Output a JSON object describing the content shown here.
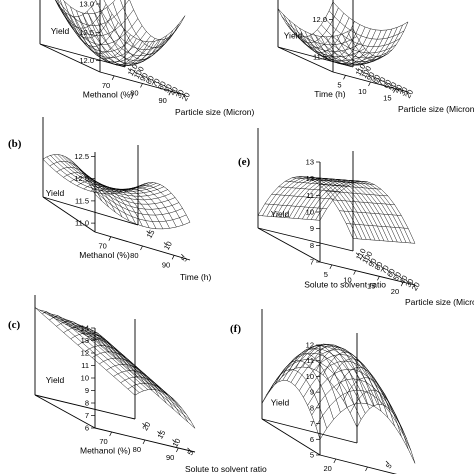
{
  "chart_data": [
    {
      "id": "a",
      "panel_label": "",
      "type": "surface",
      "zlabel": "Yield",
      "xlabel": "Methanol (%)",
      "ylabel": "Particle size (Micron)",
      "zticks": [
        "12.0",
        "12.5",
        "13.0"
      ],
      "xticks": [
        "70",
        "80",
        "90"
      ],
      "yticks": [
        "20",
        "30",
        "40",
        "50",
        "60",
        "70",
        "80",
        "90",
        "100",
        "110"
      ],
      "zlim": [
        11.8,
        13.3
      ],
      "surface": {
        "shape": "bowl",
        "min": 11.9,
        "max": 13.2
      }
    },
    {
      "id": "d",
      "panel_label": "",
      "type": "surface",
      "zlabel": "Yield",
      "xlabel": "Time (h)",
      "ylabel": "Particle size (Micron)",
      "zticks": [
        "11.5",
        "12.0"
      ],
      "xticks": [
        "5",
        "10",
        "15"
      ],
      "yticks": [
        "20",
        "30",
        "40",
        "50",
        "60",
        "70",
        "80",
        "90",
        "100",
        "110"
      ],
      "zlim": [
        11.3,
        12.3
      ],
      "surface": {
        "shape": "trough",
        "min": 11.35,
        "max": 12.25
      }
    },
    {
      "id": "b",
      "panel_label": "(b)",
      "type": "surface",
      "zlabel": "Yield",
      "xlabel": "Methanol (%)",
      "ylabel": "Time (h)",
      "zticks": [
        "11.0",
        "11.5",
        "12.0",
        "12.5"
      ],
      "xticks": [
        "70",
        "80",
        "90"
      ],
      "yticks": [
        "5",
        "10",
        "15"
      ],
      "zlim": [
        10.8,
        12.6
      ],
      "surface": {
        "shape": "saddle",
        "min": 11.2,
        "max": 12.1
      }
    },
    {
      "id": "e",
      "panel_label": "(e)",
      "type": "surface",
      "zlabel": "Yield",
      "xlabel": "Solute to solvent ratio",
      "ylabel": "Particle size (Micron)",
      "zticks": [
        "7",
        "8",
        "9",
        "10",
        "11",
        "12",
        "13"
      ],
      "xticks": [
        "5",
        "10",
        "15",
        "20"
      ],
      "yticks": [
        "20",
        "30",
        "40",
        "50",
        "60",
        "70",
        "80",
        "90",
        "100",
        "110"
      ],
      "zlim": [
        7,
        13
      ],
      "surface": {
        "shape": "ridge",
        "min": 7.5,
        "max": 12.5
      }
    },
    {
      "id": "c",
      "panel_label": "(c)",
      "type": "surface",
      "zlabel": "Yield",
      "xlabel": "Methanol (%)",
      "ylabel": "Solute to solvent ratio",
      "zticks": [
        "6",
        "7",
        "8",
        "9",
        "10",
        "11",
        "12",
        "13",
        "14"
      ],
      "xticks": [
        "70",
        "80",
        "90"
      ],
      "yticks": [
        "5",
        "10",
        "15",
        "20"
      ],
      "zlim": [
        6,
        14
      ],
      "surface": {
        "shape": "valley",
        "min": 7,
        "max": 13
      }
    },
    {
      "id": "f",
      "panel_label": "(f)",
      "type": "surface",
      "zlabel": "Yield",
      "xlabel": "",
      "ylabel": "",
      "zticks": [
        "5",
        "6",
        "7",
        "8",
        "9",
        "10",
        "11",
        "12"
      ],
      "xticks": [
        "20",
        "15",
        "10"
      ],
      "yticks": [
        "5"
      ],
      "zlim": [
        5,
        12
      ],
      "surface": {
        "shape": "dome",
        "min": 6,
        "max": 11.5
      }
    }
  ]
}
